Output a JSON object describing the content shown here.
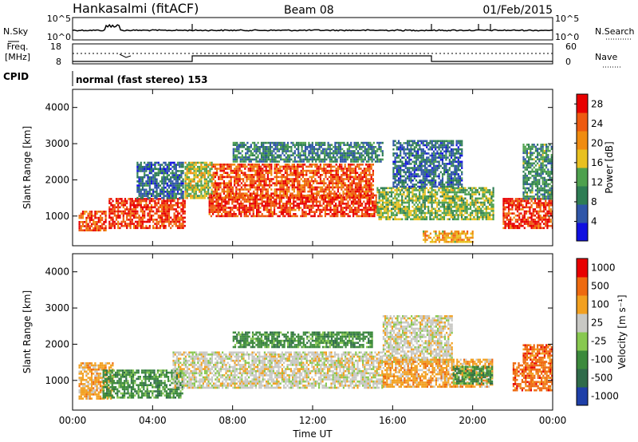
{
  "header": {
    "station": "Hankasalmi (fitACF)",
    "beam": "Beam 08",
    "date": "01/Feb/2015"
  },
  "aux": {
    "nsky_label": "N.Sky",
    "nsearch_label": "N.Search",
    "freq_label_1": "Freq.",
    "freq_label_2": "[MHz]",
    "nave_label": "Nave",
    "cpid_label": "CPID",
    "cpid_text": "normal (fast stereo) 153",
    "noise_ticks": [
      "10^5",
      "10^0"
    ],
    "freq_ticks": [
      "18",
      "8"
    ],
    "nave_ticks": [
      "60",
      "0"
    ]
  },
  "colors": {
    "background": "#ffffff",
    "axes": "#000000",
    "power_scale": [
      "#1010e0",
      "#2f56a8",
      "#2e7d54",
      "#4ea14e",
      "#e8c020",
      "#f08c10",
      "#ee5a10",
      "#e80000"
    ],
    "velocity_scale": [
      "#1e3fa8",
      "#2f6b4a",
      "#3c8a3c",
      "#88c850",
      "#c8c8c4",
      "#f2a020",
      "#ee6a10",
      "#e80000"
    ]
  },
  "chart_data": [
    {
      "type": "heatmap",
      "title": "",
      "xlabel": "",
      "ylabel": "Slant Range [km]",
      "xlim": [
        "00:00",
        "24:00"
      ],
      "ylim": [
        180,
        4500
      ],
      "x_ticks": [
        "00:00",
        "04:00",
        "08:00",
        "12:00",
        "16:00",
        "20:00",
        "00:00"
      ],
      "y_ticks": [
        1000,
        2000,
        3000,
        4000
      ],
      "colorbar": {
        "label": "Power [dB]",
        "ticks": [
          4,
          8,
          12,
          16,
          20,
          24,
          28
        ],
        "range": [
          0,
          30
        ]
      },
      "patches": [
        {
          "t0": 0.3,
          "t1": 1.7,
          "r0": 600,
          "r1": 1150,
          "value": 26
        },
        {
          "t0": 1.8,
          "t1": 5.6,
          "r0": 650,
          "r1": 1500,
          "value": 28
        },
        {
          "t0": 3.2,
          "t1": 5.5,
          "r0": 1500,
          "r1": 2500,
          "value": 6
        },
        {
          "t0": 5.6,
          "t1": 7.0,
          "r0": 1500,
          "r1": 2500,
          "value": 16
        },
        {
          "t0": 6.8,
          "t1": 15.2,
          "r0": 1000,
          "r1": 1600,
          "value": 28
        },
        {
          "t0": 7.0,
          "t1": 15.0,
          "r0": 1500,
          "r1": 2450,
          "value": 26
        },
        {
          "t0": 8.0,
          "t1": 15.5,
          "r0": 2500,
          "r1": 3050,
          "value": 8
        },
        {
          "t0": 15.2,
          "t1": 21.0,
          "r0": 900,
          "r1": 1800,
          "value": 14
        },
        {
          "t0": 16.0,
          "t1": 19.5,
          "r0": 1800,
          "r1": 3100,
          "value": 6
        },
        {
          "t0": 21.5,
          "t1": 24.0,
          "r0": 650,
          "r1": 1500,
          "value": 28
        },
        {
          "t0": 22.5,
          "t1": 24.0,
          "r0": 1500,
          "r1": 3000,
          "value": 10
        },
        {
          "t0": 17.5,
          "t1": 20.0,
          "r0": 300,
          "r1": 600,
          "value": 20
        }
      ]
    },
    {
      "type": "heatmap",
      "title": "",
      "xlabel": "Time UT",
      "ylabel": "Slant Range [km]",
      "xlim": [
        "00:00",
        "24:00"
      ],
      "ylim": [
        180,
        4500
      ],
      "x_ticks": [
        "00:00",
        "04:00",
        "08:00",
        "12:00",
        "16:00",
        "20:00",
        "00:00"
      ],
      "y_ticks": [
        1000,
        2000,
        3000,
        4000
      ],
      "colorbar": {
        "label": "Velocity [m s⁻¹]",
        "ticks": [
          1000,
          500,
          100,
          25,
          -25,
          -100,
          -500,
          -1000
        ]
      },
      "patches": [
        {
          "t0": 0.3,
          "t1": 2.0,
          "r0": 500,
          "r1": 1500,
          "value": 100
        },
        {
          "t0": 1.5,
          "t1": 5.5,
          "r0": 500,
          "r1": 1300,
          "value": -100
        },
        {
          "t0": 5.0,
          "t1": 15.5,
          "r0": 800,
          "r1": 1800,
          "value": 0
        },
        {
          "t0": 8.0,
          "t1": 15.0,
          "r0": 1900,
          "r1": 2350,
          "value": -100
        },
        {
          "t0": 15.5,
          "t1": 19.0,
          "r0": 1500,
          "r1": 2800,
          "value": 0
        },
        {
          "t0": 15.5,
          "t1": 21.0,
          "r0": 800,
          "r1": 1600,
          "value": 100
        },
        {
          "t0": 19.0,
          "t1": 21.0,
          "r0": 900,
          "r1": 1400,
          "value": -300
        },
        {
          "t0": 22.0,
          "t1": 24.0,
          "r0": 700,
          "r1": 1500,
          "value": 300
        },
        {
          "t0": 22.5,
          "t1": 24.0,
          "r0": 1500,
          "r1": 2000,
          "value": 500
        }
      ]
    }
  ]
}
